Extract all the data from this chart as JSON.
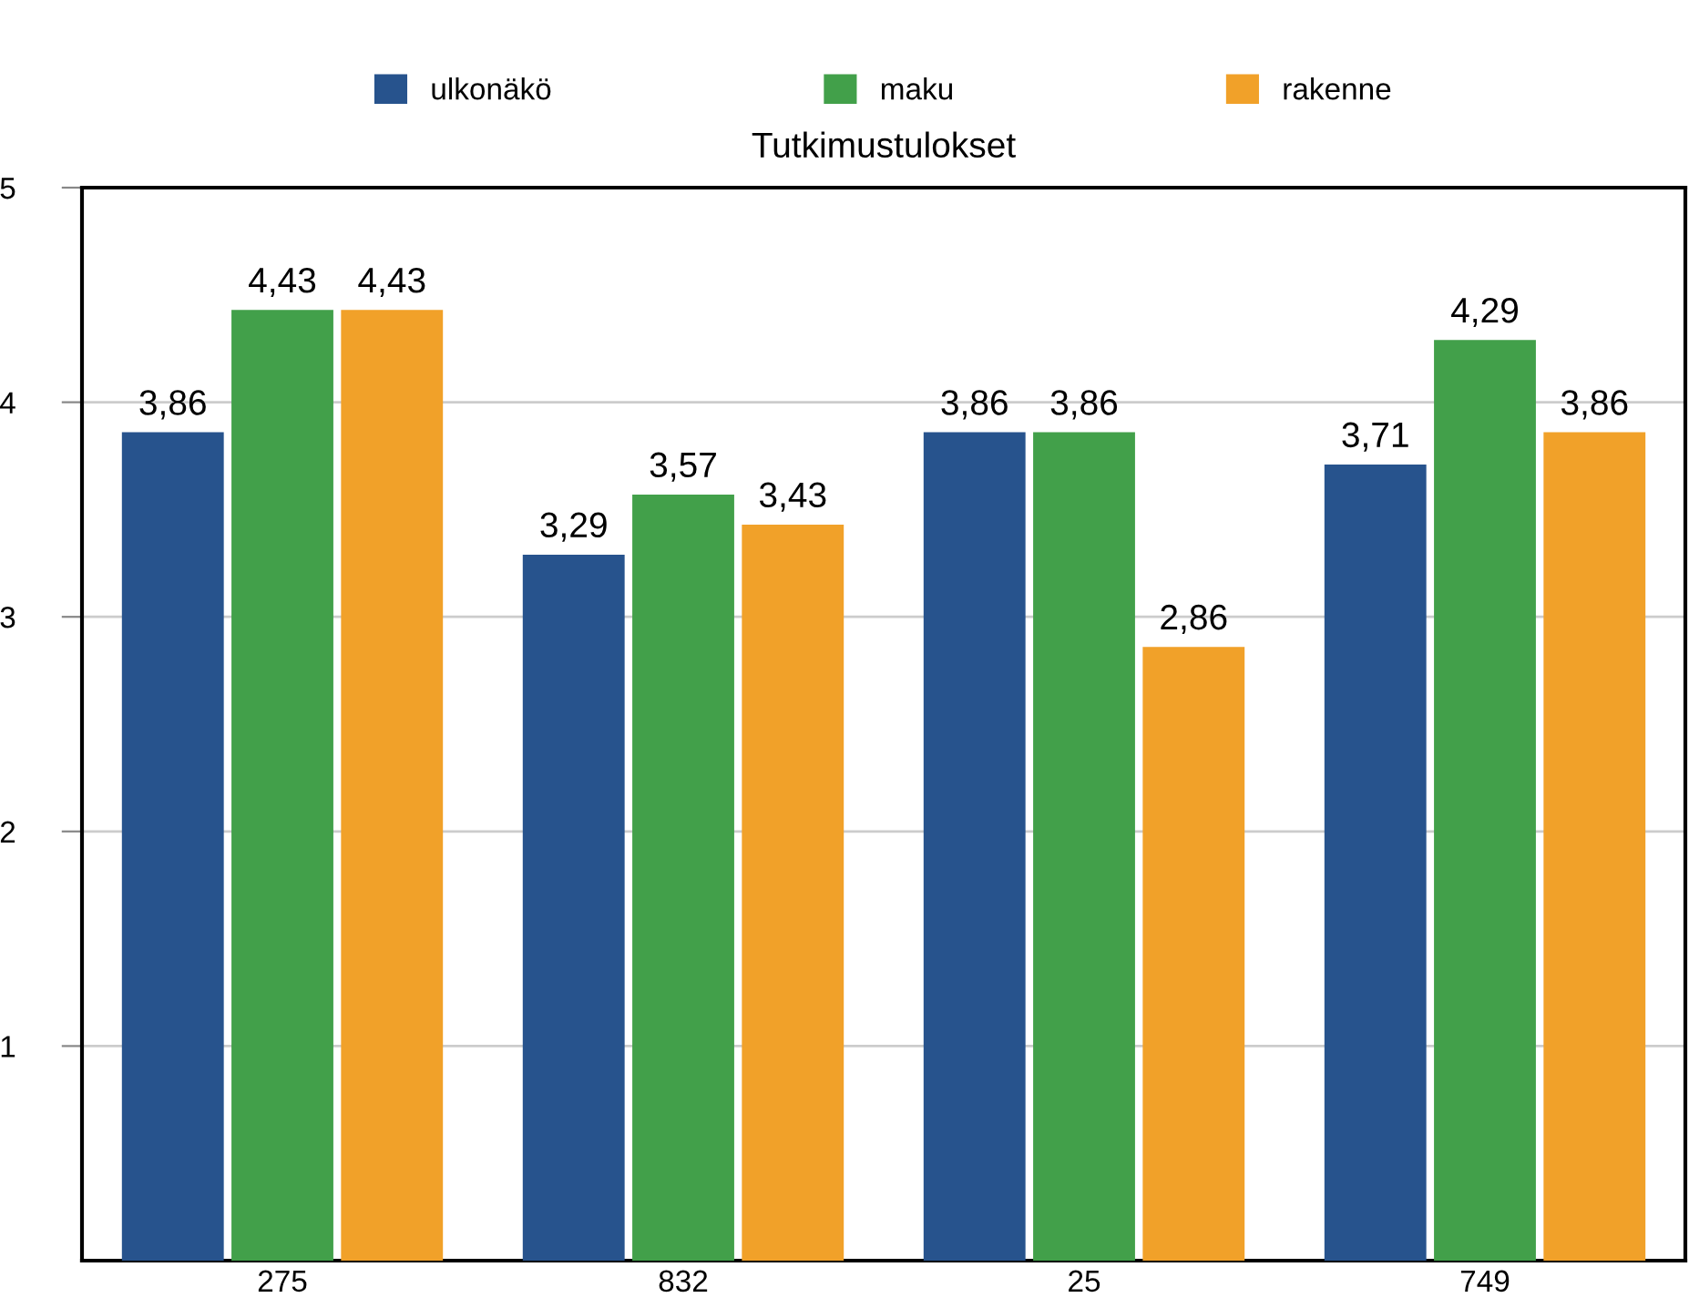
{
  "chart_data": {
    "type": "bar",
    "title": "Tutkimustulokset",
    "categories": [
      "275",
      "832",
      "25",
      "749"
    ],
    "series": [
      {
        "name": "ulkonäkö",
        "color": "#27538d",
        "values": [
          3.86,
          3.29,
          3.86,
          3.71
        ],
        "value_labels": [
          "3,86",
          "3,29",
          "3,86",
          "3,71"
        ]
      },
      {
        "name": "maku",
        "color": "#42a04a",
        "values": [
          4.43,
          3.57,
          3.86,
          4.29
        ],
        "value_labels": [
          "4,43",
          "3,57",
          "3,86",
          "4,29"
        ]
      },
      {
        "name": "rakenne",
        "color": "#f1a129",
        "values": [
          4.43,
          3.43,
          2.86,
          3.86
        ],
        "value_labels": [
          "4,43",
          "3,43",
          "2,86",
          "3,86"
        ]
      }
    ],
    "ylim": [
      0,
      5
    ],
    "yticks": [
      1,
      2,
      3,
      4,
      5
    ],
    "grid": "y",
    "legend": "top"
  }
}
